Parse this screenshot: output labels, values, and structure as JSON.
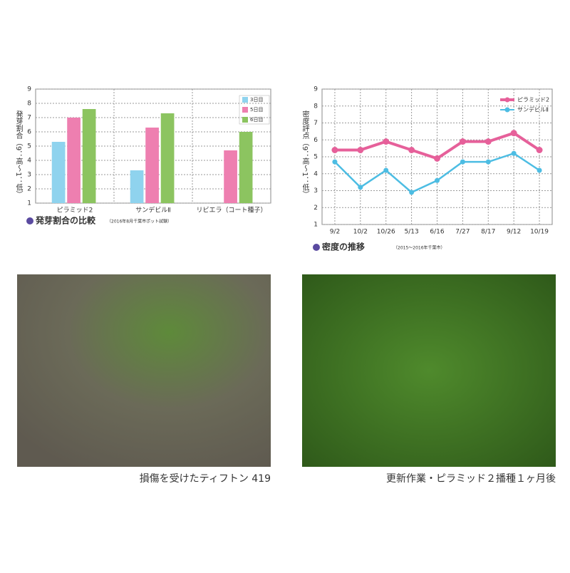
{
  "chart_data": [
    {
      "type": "bar",
      "title": "発芽割合の比較",
      "subtitle": "（2016年8月千葉市ポット試験）",
      "y_label": "発芽割合（9：高～1：低）",
      "categories": [
        "ピラミッド2",
        "サンデビルⅡ",
        "リビエラ（コート種子）"
      ],
      "series": [
        {
          "name": "3日目",
          "color": "#8fd3ee",
          "values": [
            5.3,
            3.3,
            null
          ]
        },
        {
          "name": "5日目",
          "color": "#ee7fb0",
          "values": [
            7.0,
            6.3,
            4.7
          ]
        },
        {
          "name": "6日目",
          "color": "#8cc460",
          "values": [
            7.6,
            7.3,
            6.0
          ]
        }
      ],
      "ylim": [
        1,
        9
      ],
      "yticks": [
        1,
        2,
        3,
        4,
        5,
        6,
        7,
        8,
        9
      ],
      "grid": true
    },
    {
      "type": "line",
      "title": "密度の推移",
      "subtitle": "（2015～2016年千葉市）",
      "y_label": "密度評点（9：高～1：低）",
      "categories": [
        "9/2",
        "10/2",
        "10/26",
        "5/13",
        "6/16",
        "7/27",
        "8/17",
        "9/12",
        "10/19"
      ],
      "series": [
        {
          "name": "ピラミッド2",
          "color": "#e6609a",
          "values": [
            5.4,
            5.4,
            5.9,
            5.4,
            4.9,
            5.9,
            5.9,
            6.4,
            5.4
          ]
        },
        {
          "name": "サンデビルⅡ",
          "color": "#4dbde3",
          "values": [
            4.7,
            3.2,
            4.2,
            2.9,
            3.6,
            4.7,
            4.7,
            5.2,
            4.2
          ]
        }
      ],
      "ylim": [
        1,
        9
      ],
      "yticks": [
        1,
        2,
        3,
        4,
        5,
        6,
        7,
        8,
        9
      ],
      "grid": true
    }
  ],
  "captions": [
    "損傷を受けたティフトン 419",
    "更新作業・ピラミッド２播種１ヶ月後"
  ]
}
